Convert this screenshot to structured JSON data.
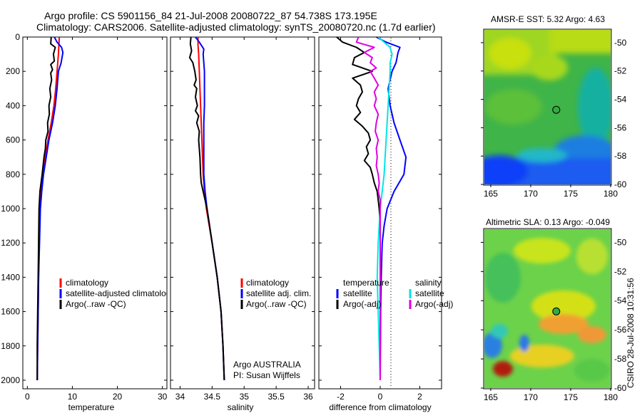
{
  "header": {
    "line1": "Argo profile: CS 5901156_84 21-Jul-2008 20080722_87 54.738S 173.195E",
    "line2": "Climatology: CARS2006. Satellite-adjusted climatology: synTS_20080720.nc (1.7d earlier)"
  },
  "side_text": "CSIRO 28-Jul-2008 10:31:56",
  "colors": {
    "climatology": "#ff0000",
    "satellite": "#0000ff",
    "argo": "#000000",
    "salinity_satellite": "#00e5e5",
    "salinity_argo": "#e000e0"
  },
  "depth_ticks": [
    0,
    200,
    400,
    600,
    800,
    1000,
    1200,
    1400,
    1600,
    1800,
    2000
  ],
  "chart_data": [
    {
      "type": "line",
      "xlabel": "temperature",
      "xlim": [
        -1,
        31
      ],
      "ylim": [
        2050,
        0
      ],
      "xticks": [
        "0",
        "10",
        "20",
        "30"
      ],
      "xtick_values": [
        0,
        10,
        20,
        30
      ],
      "legend": [
        "climatology",
        "satellite-adjusted climatology",
        "Argo(..raw -QC)"
      ],
      "series": [
        {
          "key": "clim",
          "y": [
            0,
            100,
            200,
            300,
            400,
            500,
            600,
            700,
            800,
            900,
            1000,
            1200,
            1400,
            1600,
            1800,
            2000
          ],
          "x": [
            7.1,
            6.9,
            6.6,
            6.3,
            5.9,
            5.3,
            4.6,
            4.0,
            3.5,
            3.1,
            2.8,
            2.6,
            2.5,
            2.4,
            2.3,
            2.2
          ]
        },
        {
          "key": "sat",
          "y": [
            0,
            30,
            60,
            90,
            150,
            200,
            300,
            400,
            500,
            600,
            700,
            800,
            900,
            1000,
            1200,
            1400,
            1600,
            1800,
            2000
          ],
          "x": [
            6.0,
            6.6,
            7.6,
            7.9,
            7.5,
            6.9,
            6.6,
            6.2,
            5.6,
            4.8,
            4.2,
            3.6,
            3.2,
            2.9,
            2.7,
            2.5,
            2.4,
            2.3,
            2.2
          ]
        },
        {
          "key": "argo",
          "y": [
            0,
            40,
            60,
            100,
            140,
            160,
            190,
            210,
            250,
            300,
            350,
            400,
            450,
            500,
            550,
            600,
            650,
            700,
            750,
            800,
            900,
            1000,
            1200,
            1400,
            1600,
            1800,
            2000
          ],
          "x": [
            5.3,
            5.2,
            6.2,
            5.8,
            6.0,
            5.2,
            5.6,
            5.2,
            5.4,
            5.0,
            5.2,
            4.8,
            4.9,
            4.5,
            4.6,
            4.1,
            4.0,
            3.7,
            3.5,
            3.3,
            2.8,
            2.6,
            2.5,
            2.4,
            2.3,
            2.2,
            2.2
          ]
        }
      ]
    },
    {
      "type": "line",
      "xlabel": "salinity",
      "xlim": [
        33.85,
        36.1
      ],
      "ylim": [
        2050,
        0
      ],
      "xticks": [
        "34",
        "34.5",
        "35",
        "35.5",
        "36"
      ],
      "xtick_values": [
        34,
        34.5,
        35,
        35.5,
        36
      ],
      "legend": [
        "climatology",
        "satellite adj. clim.",
        "Argo(..raw -QC)"
      ],
      "annotation": [
        "Argo AUSTRALIA",
        "PI: Susan Wijffels"
      ],
      "series": [
        {
          "key": "clim",
          "y": [
            0,
            50,
            100,
            200,
            300,
            400,
            500,
            600,
            700,
            800,
            900,
            1000,
            1200,
            1400,
            1600,
            1800,
            2000
          ],
          "x": [
            34.28,
            34.28,
            34.29,
            34.3,
            34.31,
            34.32,
            34.33,
            34.34,
            34.35,
            34.36,
            34.38,
            34.41,
            34.5,
            34.58,
            34.64,
            34.67,
            34.69
          ]
        },
        {
          "key": "sat",
          "y": [
            0,
            30,
            70,
            100,
            150,
            200,
            300,
            400,
            500,
            600,
            700,
            800,
            900,
            1000,
            1200,
            1400,
            1600,
            1800,
            2000
          ],
          "x": [
            34.24,
            34.3,
            34.37,
            34.36,
            34.37,
            34.38,
            34.38,
            34.38,
            34.37,
            34.37,
            34.37,
            34.37,
            34.39,
            34.42,
            34.5,
            34.58,
            34.64,
            34.67,
            34.69
          ]
        },
        {
          "key": "argo",
          "y": [
            0,
            40,
            80,
            120,
            150,
            200,
            250,
            280,
            300,
            350,
            400,
            430,
            460,
            500,
            550,
            600,
            700,
            800,
            850,
            900,
            1000,
            1200,
            1400,
            1600,
            1800,
            2000
          ],
          "x": [
            34.17,
            34.16,
            34.18,
            34.15,
            34.2,
            34.23,
            34.25,
            34.22,
            34.26,
            34.24,
            34.27,
            34.24,
            34.29,
            34.26,
            34.3,
            34.29,
            34.31,
            34.32,
            34.33,
            34.36,
            34.42,
            34.5,
            34.58,
            34.64,
            34.67,
            34.69
          ]
        }
      ]
    },
    {
      "type": "line",
      "xlabel": "difference from climatology",
      "xlim": [
        -3.1,
        3.1
      ],
      "ylim": [
        2050,
        0
      ],
      "xticks": [
        "-2",
        "0",
        "2"
      ],
      "xtick_values": [
        -2,
        0,
        2
      ],
      "legend_headers": [
        "temperature",
        "salinity"
      ],
      "legend": [
        "satellite",
        "Argo(-adj)",
        "satellite",
        "Argo(-adj)"
      ],
      "series": [
        {
          "key": "t_sat",
          "y": [
            0,
            30,
            60,
            90,
            150,
            200,
            250,
            300,
            400,
            500,
            600,
            700,
            800,
            900,
            1000,
            1100,
            1200,
            1400,
            1600,
            1800,
            2000
          ],
          "x": [
            -0.2,
            0.3,
            1.0,
            0.9,
            0.8,
            0.6,
            0.5,
            0.4,
            0.5,
            0.7,
            1.0,
            1.3,
            1.2,
            0.7,
            0.35,
            0.2,
            0.1,
            0.05,
            0.02,
            0.01,
            0.0
          ]
        },
        {
          "key": "t_argo",
          "y": [
            0,
            30,
            60,
            90,
            120,
            160,
            200,
            240,
            280,
            320,
            360,
            400,
            440,
            480,
            520,
            560,
            600,
            640,
            680,
            720,
            760,
            800,
            850,
            900,
            950,
            1000,
            1100,
            1200,
            1400,
            1600,
            1800,
            2000
          ],
          "x": [
            -2.2,
            -1.9,
            -1.2,
            -0.8,
            -1.3,
            -1.4,
            -0.4,
            -1.4,
            -1.0,
            -0.9,
            -1.1,
            -1.2,
            -1.0,
            -1.3,
            -0.9,
            -0.6,
            -0.5,
            -0.7,
            -0.6,
            -0.8,
            -0.5,
            -0.4,
            -0.3,
            -0.15,
            -0.1,
            -0.05,
            0.0,
            0.0,
            0.0,
            0.0,
            0.0,
            0.0
          ]
        },
        {
          "key": "s_sat",
          "y": [
            0,
            30,
            60,
            100,
            150,
            200,
            300,
            400,
            500,
            600,
            700,
            800,
            900,
            1000,
            1100,
            1200,
            1400,
            1600,
            1800,
            2000
          ],
          "x": [
            -0.1,
            0.2,
            0.5,
            0.6,
            0.5,
            0.5,
            0.45,
            0.4,
            0.35,
            0.3,
            0.25,
            0.2,
            0.1,
            0.0,
            -0.05,
            -0.1,
            -0.15,
            -0.1,
            -0.05,
            0.0
          ]
        },
        {
          "key": "s_argo",
          "y": [
            0,
            30,
            60,
            90,
            120,
            150,
            180,
            200,
            240,
            280,
            320,
            360,
            400,
            450,
            500,
            550,
            600,
            650,
            700,
            750,
            800,
            850,
            900,
            950,
            1000,
            1200,
            1400,
            1600,
            1800,
            2000
          ],
          "x": [
            -1.1,
            -1.2,
            -0.3,
            -0.8,
            -0.4,
            -0.5,
            -0.2,
            -0.5,
            -0.3,
            -0.1,
            -0.3,
            -0.2,
            -0.3,
            -0.1,
            -0.2,
            -0.25,
            -0.1,
            -0.2,
            -0.15,
            -0.2,
            -0.1,
            -0.05,
            -0.1,
            0.0,
            0.0,
            0.0,
            0.0,
            0.0,
            0.0,
            0.0
          ]
        }
      ]
    },
    {
      "type": "heatmap",
      "title": "AMSR-E SST: 5.32 Argo: 4.63",
      "xticks": [
        "165",
        "170",
        "175",
        "180"
      ],
      "xtick_values": [
        165,
        170,
        175,
        180
      ],
      "yticks": [
        "-50",
        "-52",
        "-54",
        "-56",
        "-58",
        "-60"
      ],
      "ytick_values": [
        -50,
        -52,
        -54,
        -56,
        -58,
        -60
      ],
      "xlim": [
        164.2,
        180
      ],
      "ylim": [
        -60,
        -49.1
      ],
      "marker": [
        173.195,
        -54.738
      ]
    },
    {
      "type": "heatmap",
      "title": "Altimetric SLA: 0.13 Argo: -0.049",
      "xticks": [
        "165",
        "170",
        "175",
        "180"
      ],
      "xtick_values": [
        165,
        170,
        175,
        180
      ],
      "yticks": [
        "-50",
        "-52",
        "-54",
        "-56",
        "-58",
        "-60"
      ],
      "ytick_values": [
        -50,
        -52,
        -54,
        -56,
        -58,
        -60
      ],
      "xlim": [
        164.2,
        180
      ],
      "ylim": [
        -60,
        -49.1
      ],
      "marker": [
        173.195,
        -54.738
      ]
    }
  ]
}
